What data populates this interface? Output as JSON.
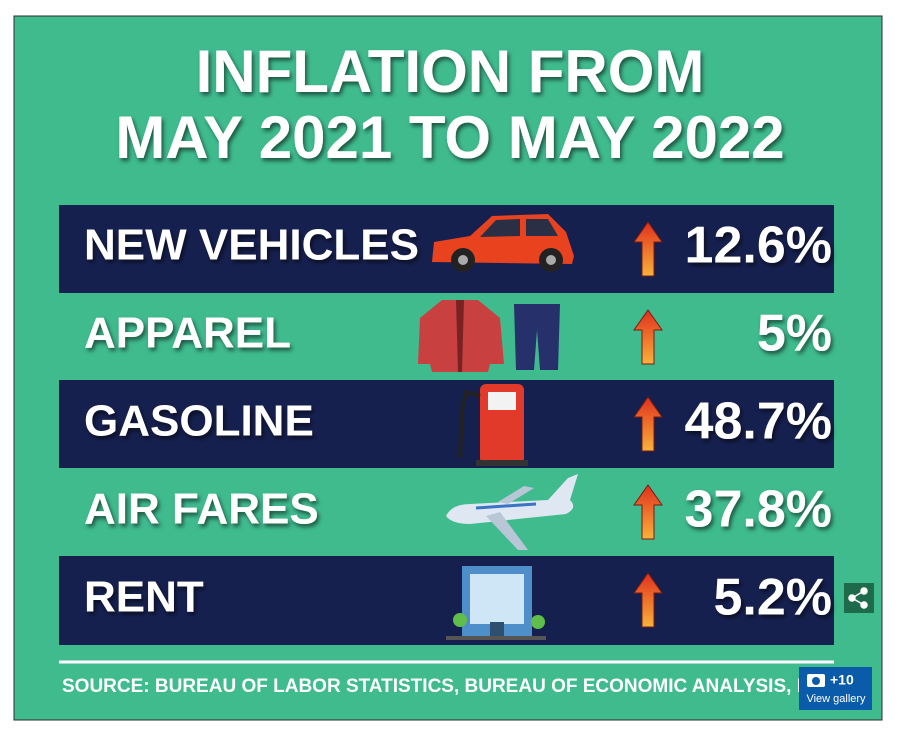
{
  "header": {
    "title_lines": [
      "INFLATION FROM",
      "MAY 2021 TO MAY 2022"
    ]
  },
  "rows": [
    {
      "label": "NEW VEHICLES",
      "value": "12.6%"
    },
    {
      "label": "APPAREL",
      "value": "5%"
    },
    {
      "label": "GASOLINE",
      "value": "48.7%"
    },
    {
      "label": "AIR FARES",
      "value": "37.8%"
    },
    {
      "label": "RENT",
      "value": "5.2%"
    }
  ],
  "source": "SOURCE: BUREAU OF LABOR STATISTICS, BUREAU OF ECONOMIC ANALYSIS, ICE EXCH",
  "gallery": {
    "count": "+10",
    "label": "View gallery"
  }
}
